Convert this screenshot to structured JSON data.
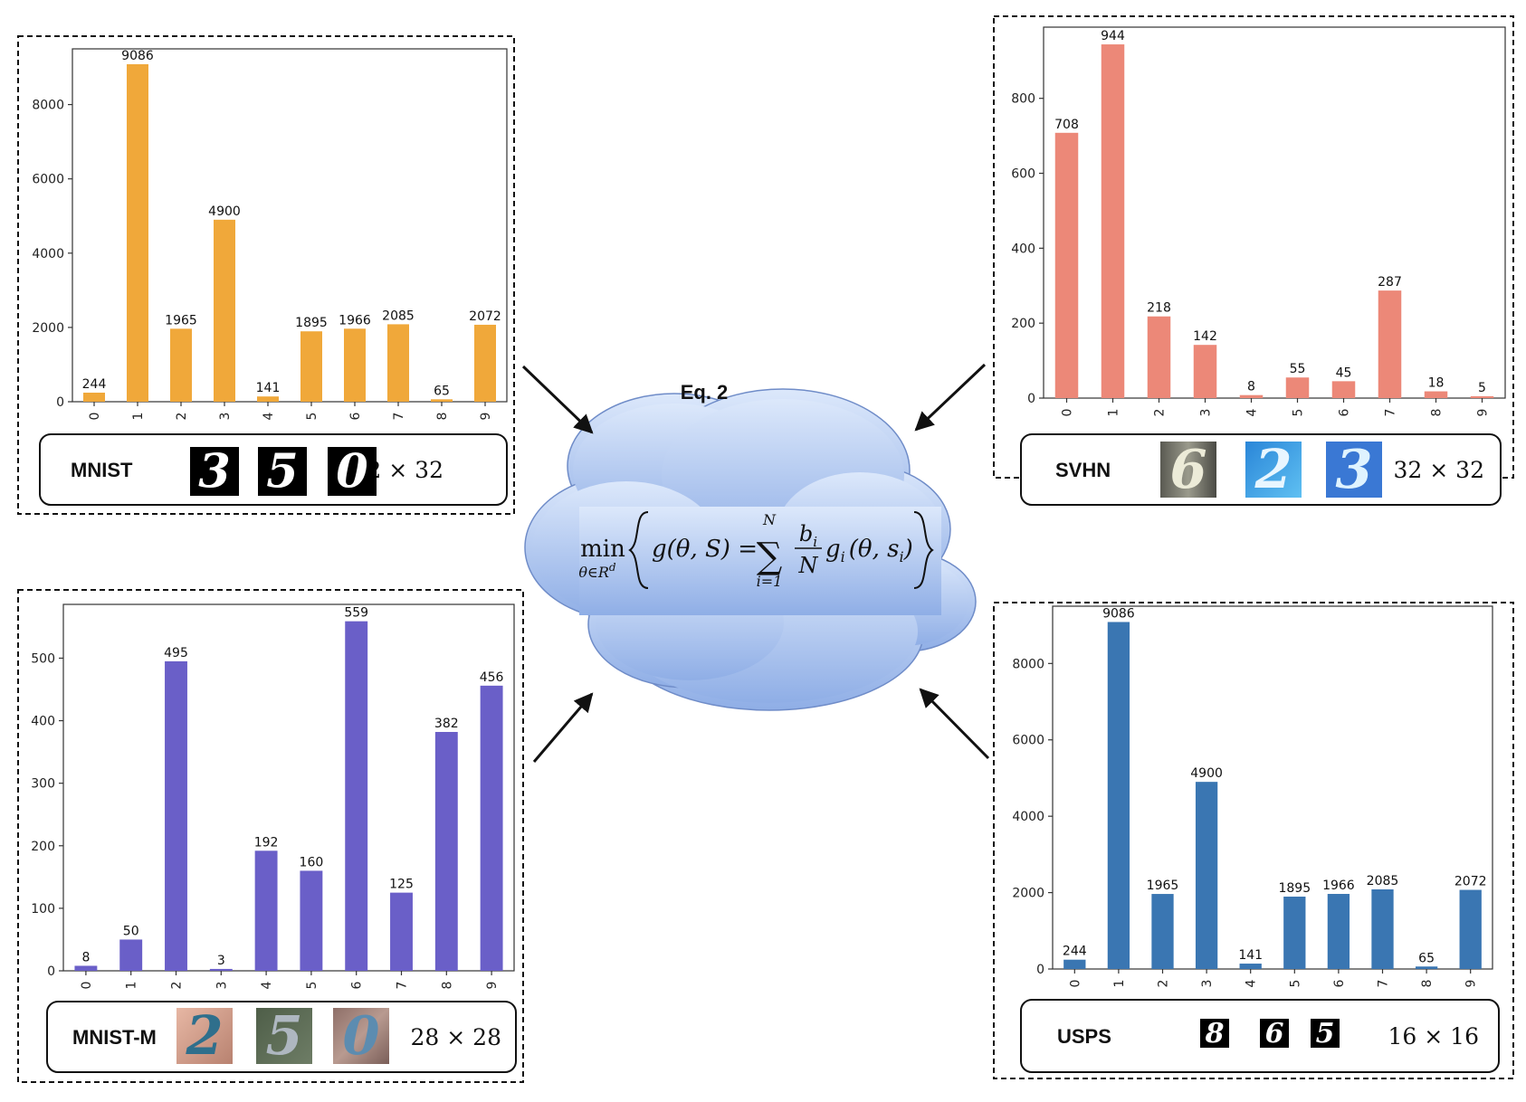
{
  "center": {
    "eq_label": "Eq. 2",
    "equation": {
      "min": "min",
      "min_sub": "θ∈R",
      "min_sub_sup": "d",
      "lhs": "g(θ, S) =",
      "sum_top": "N",
      "sum_bottom": "i=1",
      "frac_num": "b",
      "frac_num_sub": "i",
      "frac_den": "N",
      "rhs": "g",
      "rhs_sub": "i",
      "rhs_args": "(θ, s",
      "rhs_args_sub": "i",
      "rhs_close": ")"
    },
    "cloud_color": "#aec8ef"
  },
  "panels": [
    {
      "id": "mnist",
      "dataset": "MNIST",
      "resolution": "32 × 32",
      "thumbnails": [
        "3",
        "5",
        "0"
      ],
      "chart_data": {
        "type": "bar",
        "categories": [
          "0",
          "1",
          "2",
          "3",
          "4",
          "5",
          "6",
          "7",
          "8",
          "9"
        ],
        "values": [
          244,
          9086,
          1965,
          4900,
          141,
          1895,
          1966,
          2085,
          65,
          2072
        ],
        "data_labels": [
          "244",
          "9086",
          "1965",
          "4900",
          "141",
          "1895",
          "1966",
          "2085",
          "65",
          "2072"
        ],
        "yticks": [
          "0",
          "2000",
          "4000",
          "6000",
          "8000"
        ],
        "ytick_values": [
          0,
          2000,
          4000,
          6000,
          8000
        ],
        "ylim": [
          0,
          9500
        ],
        "color": "#f0a83a"
      }
    },
    {
      "id": "svhn",
      "dataset": "SVHN",
      "resolution": "32 × 32",
      "thumbnails": [
        "6",
        "2",
        "3"
      ],
      "chart_data": {
        "type": "bar",
        "categories": [
          "0",
          "1",
          "2",
          "3",
          "4",
          "5",
          "6",
          "7",
          "8",
          "9"
        ],
        "values": [
          708,
          944,
          218,
          142,
          8,
          55,
          45,
          287,
          18,
          5
        ],
        "data_labels": [
          "708",
          "944",
          "218",
          "142",
          "8",
          "55",
          "45",
          "287",
          "18",
          "5"
        ],
        "yticks": [
          "0",
          "200",
          "400",
          "600",
          "800"
        ],
        "ytick_values": [
          0,
          200,
          400,
          600,
          800
        ],
        "ylim": [
          0,
          990
        ],
        "color": "#ec8878"
      }
    },
    {
      "id": "mnistm",
      "dataset": "MNIST-M",
      "resolution": "28 × 28",
      "thumbnails": [
        "2",
        "5",
        "0"
      ],
      "chart_data": {
        "type": "bar",
        "categories": [
          "0",
          "1",
          "2",
          "3",
          "4",
          "5",
          "6",
          "7",
          "8",
          "9"
        ],
        "values": [
          8,
          50,
          495,
          3,
          192,
          160,
          559,
          125,
          382,
          456
        ],
        "data_labels": [
          "8",
          "50",
          "495",
          "3",
          "192",
          "160",
          "559",
          "125",
          "382",
          "456"
        ],
        "yticks": [
          "0",
          "100",
          "200",
          "300",
          "400",
          "500"
        ],
        "ytick_values": [
          0,
          100,
          200,
          300,
          400,
          500
        ],
        "ylim": [
          0,
          586
        ],
        "color": "#6a5fc8"
      }
    },
    {
      "id": "usps",
      "dataset": "USPS",
      "resolution": "16 × 16",
      "thumbnails": [
        "8",
        "6",
        "5"
      ],
      "chart_data": {
        "type": "bar",
        "categories": [
          "0",
          "1",
          "2",
          "3",
          "4",
          "5",
          "6",
          "7",
          "8",
          "9"
        ],
        "values": [
          244,
          9086,
          1965,
          4900,
          141,
          1895,
          1966,
          2085,
          65,
          2072
        ],
        "data_labels": [
          "244",
          "9086",
          "1965",
          "4900",
          "141",
          "1895",
          "1966",
          "2085",
          "65",
          "2072"
        ],
        "yticks": [
          "0",
          "2000",
          "4000",
          "6000",
          "8000"
        ],
        "ytick_values": [
          0,
          2000,
          4000,
          6000,
          8000
        ],
        "ylim": [
          0,
          9500
        ],
        "color": "#3a76b2"
      }
    }
  ]
}
